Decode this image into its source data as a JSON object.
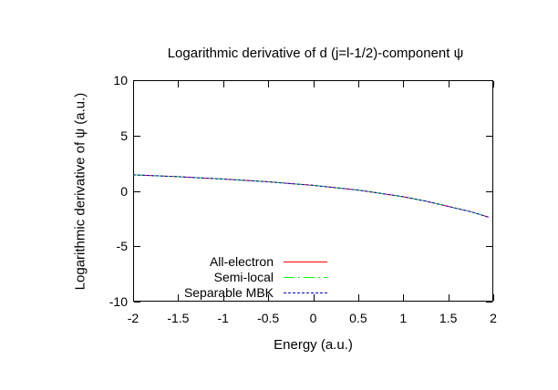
{
  "figure": {
    "background": "#ffffff",
    "border_color": "#000000",
    "text_color": "#000000"
  },
  "chart_data": {
    "type": "line",
    "title": "Logarithmic derivative of d (j=l-1/2)-component ψ",
    "xlabel": "Energy (a.u.)",
    "ylabel": "Logarithmic derivative of ψ (a.u.)",
    "xlim": [
      -2,
      2
    ],
    "ylim": [
      -10,
      10
    ],
    "x_ticks": [
      -2,
      -1.5,
      -1,
      -0.5,
      0,
      0.5,
      1,
      1.5,
      2
    ],
    "x_tick_labels": [
      "-2",
      "-1.5",
      "-1",
      "-0.5",
      "0",
      "0.5",
      "1",
      "1.5",
      "2"
    ],
    "y_ticks": [
      10,
      5,
      0,
      -5,
      -10
    ],
    "y_tick_labels": [
      "10",
      "5",
      "0",
      "-5",
      "-10"
    ],
    "grid": false,
    "legend_position": "inside bottom-left, labels right-aligned with line samples",
    "x": [
      -2,
      -1.75,
      -1.5,
      -1.25,
      -1,
      -0.75,
      -0.5,
      -0.25,
      0,
      0.25,
      0.5,
      0.75,
      1,
      1.25,
      1.5,
      1.75,
      1.95
    ],
    "series": [
      {
        "name": "All-electron",
        "color": "#ff0000",
        "line_style": "solid",
        "values": [
          1.45,
          1.37,
          1.28,
          1.18,
          1.07,
          0.95,
          0.82,
          0.66,
          0.5,
          0.29,
          0.07,
          -0.22,
          -0.53,
          -0.92,
          -1.4,
          -1.88,
          -2.38
        ]
      },
      {
        "name": "Semi-local",
        "color": "#00ff00",
        "line_style": "dash-dot",
        "values": [
          1.45,
          1.37,
          1.28,
          1.18,
          1.07,
          0.95,
          0.82,
          0.66,
          0.5,
          0.29,
          0.07,
          -0.22,
          -0.53,
          -0.92,
          -1.4,
          -1.88,
          -2.38
        ]
      },
      {
        "name": "Separable MBK",
        "color": "#0000ff",
        "line_style": "dotted",
        "values": [
          1.45,
          1.37,
          1.28,
          1.18,
          1.07,
          0.95,
          0.82,
          0.66,
          0.5,
          0.29,
          0.07,
          -0.22,
          -0.53,
          -0.92,
          -1.4,
          -1.88,
          -2.38
        ]
      }
    ]
  }
}
